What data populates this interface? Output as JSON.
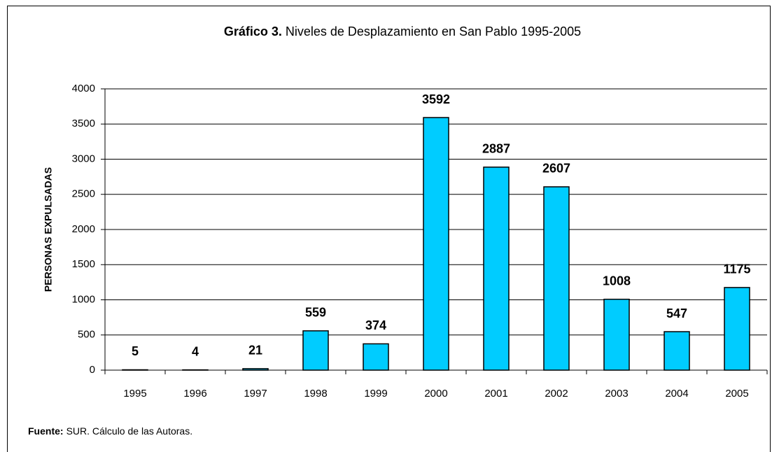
{
  "chart_data": {
    "type": "bar",
    "title_label": "Gráfico 3.",
    "title": "Niveles de Desplazamiento en San Pablo 1995-2005",
    "y_label": "PERSONAS EXPULSADAS",
    "categories": [
      "1995",
      "1996",
      "1997",
      "1998",
      "1999",
      "2000",
      "2001",
      "2002",
      "2003",
      "2004",
      "2005"
    ],
    "values": [
      5,
      4,
      21,
      559,
      374,
      3592,
      2887,
      2607,
      1008,
      547,
      1175
    ],
    "color": "#00ccff",
    "ylim": [
      0,
      4000
    ],
    "yticks": [
      0,
      500,
      1000,
      1500,
      2000,
      2500,
      3000,
      3500,
      4000
    ],
    "grid": true,
    "source_label": "Fuente:",
    "source": "SUR. Cálculo de las Autoras."
  }
}
